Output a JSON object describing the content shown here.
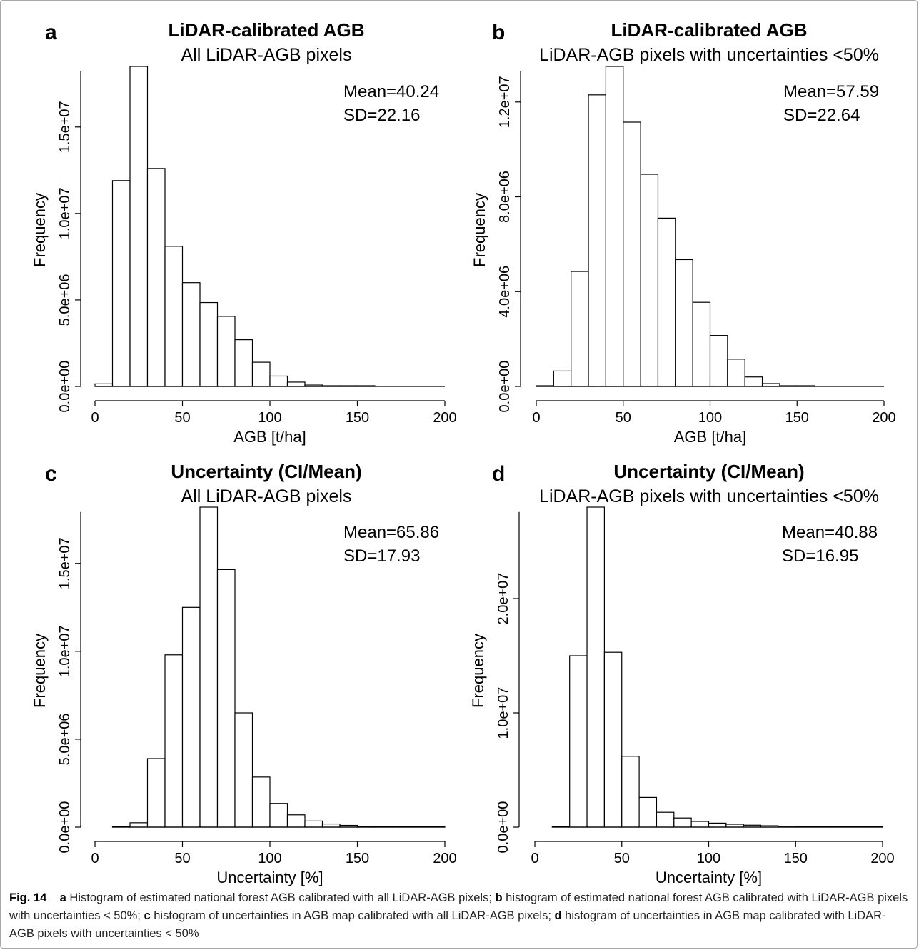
{
  "chart_data": [
    {
      "type": "bar",
      "panel": "a",
      "title": "LiDAR-calibrated AGB",
      "subtitle": "All LiDAR-AGB pixels",
      "xlabel": "AGB [t/ha]",
      "ylabel": "Frequency",
      "xlim": [
        0,
        200
      ],
      "ylim": [
        0,
        18500000
      ],
      "xticks": [
        "0",
        "50",
        "100",
        "150",
        "200"
      ],
      "yticks": [
        "0.0e+00",
        "5.0e+06",
        "1.0e+07",
        "1.5e+07"
      ],
      "bin_width": 10,
      "bins_start": [
        0,
        10,
        20,
        30,
        40,
        50,
        60,
        70,
        80,
        90,
        100,
        110,
        120,
        130,
        140,
        150
      ],
      "values": [
        150000,
        11900000,
        18500000,
        12600000,
        8100000,
        6000000,
        4850000,
        4050000,
        2700000,
        1400000,
        600000,
        250000,
        80000,
        30000,
        10000,
        5000
      ],
      "stats": [
        "Mean=40.24",
        "SD=22.16"
      ]
    },
    {
      "type": "bar",
      "panel": "b",
      "title": "LiDAR-calibrated AGB",
      "subtitle": "LiDAR-AGB pixels with uncertainties <50%",
      "xlabel": "AGB [t/ha]",
      "ylabel": "Frequency",
      "xlim": [
        0,
        200
      ],
      "ylim": [
        0,
        13500000
      ],
      "xticks": [
        "0",
        "50",
        "100",
        "150",
        "200"
      ],
      "yticks": [
        "0.0e+00",
        "4.0e+06",
        "8.0e+06",
        "1.2e+07"
      ],
      "bin_width": 10,
      "bins_start": [
        0,
        10,
        20,
        30,
        40,
        50,
        60,
        70,
        80,
        90,
        100,
        110,
        120,
        130,
        140,
        150
      ],
      "values": [
        30000,
        650000,
        4850000,
        12300000,
        13500000,
        11150000,
        8950000,
        7100000,
        5350000,
        3550000,
        2150000,
        1150000,
        400000,
        120000,
        30000,
        5000
      ],
      "stats": [
        "Mean=57.59",
        "SD=22.64"
      ]
    },
    {
      "type": "bar",
      "panel": "c",
      "title": "Uncertainty (CI/Mean)",
      "subtitle": "All LiDAR-AGB pixels",
      "xlabel": "Uncertainty [%]",
      "ylabel": "Frequency",
      "xlim": [
        0,
        200
      ],
      "ylim": [
        0,
        18200000
      ],
      "xticks": [
        "0",
        "50",
        "100",
        "150",
        "200"
      ],
      "yticks": [
        "0.0e+00",
        "5.0e+06",
        "1.0e+07",
        "1.5e+07"
      ],
      "bin_width": 10,
      "bins_start": [
        10,
        20,
        30,
        40,
        50,
        60,
        70,
        80,
        90,
        100,
        110,
        120,
        130,
        140,
        150,
        160,
        170,
        180,
        190
      ],
      "values": [
        0,
        250000,
        3900000,
        9800000,
        12500000,
        18200000,
        14650000,
        6500000,
        2850000,
        1350000,
        700000,
        350000,
        180000,
        100000,
        50000,
        30000,
        15000,
        8000,
        4000
      ],
      "stats": [
        "Mean=65.86",
        "SD=17.93"
      ]
    },
    {
      "type": "bar",
      "panel": "d",
      "title": "Uncertainty (CI/Mean)",
      "subtitle": "LiDAR-AGB pixels with uncertainties <50%",
      "xlabel": "Uncertainty [%]",
      "ylabel": "Frequency",
      "xlim": [
        0,
        200
      ],
      "ylim": [
        0,
        28000000
      ],
      "xticks": [
        "0",
        "50",
        "100",
        "150",
        "200"
      ],
      "yticks": [
        "0.0e+00",
        "1.0e+07",
        "2.0e+07"
      ],
      "bin_width": 10,
      "bins_start": [
        10,
        20,
        30,
        40,
        50,
        60,
        70,
        80,
        90,
        100,
        110,
        120,
        130,
        140,
        150,
        160,
        170,
        180,
        190
      ],
      "values": [
        30000,
        15000000,
        28000000,
        15300000,
        6200000,
        2600000,
        1300000,
        800000,
        500000,
        350000,
        250000,
        170000,
        120000,
        80000,
        50000,
        30000,
        20000,
        10000,
        5000
      ],
      "stats": [
        "Mean=40.88",
        "SD=16.95"
      ]
    }
  ],
  "caption": {
    "fig_label": "Fig. 14",
    "parts": [
      {
        "letter": "a",
        "text": " Histogram of estimated national forest AGB calibrated with all LiDAR-AGB pixels; "
      },
      {
        "letter": "b",
        "text": " histogram of estimated national forest AGB calibrated with LiDAR-AGB pixels with uncertainties < 50%; "
      },
      {
        "letter": "c",
        "text": " histogram of uncertainties in AGB map calibrated with all LiDAR-AGB pixels; "
      },
      {
        "letter": "d",
        "text": " histogram of uncertainties in AGB map calibrated with LiDAR-AGB pixels with uncertainties < 50%"
      }
    ]
  }
}
